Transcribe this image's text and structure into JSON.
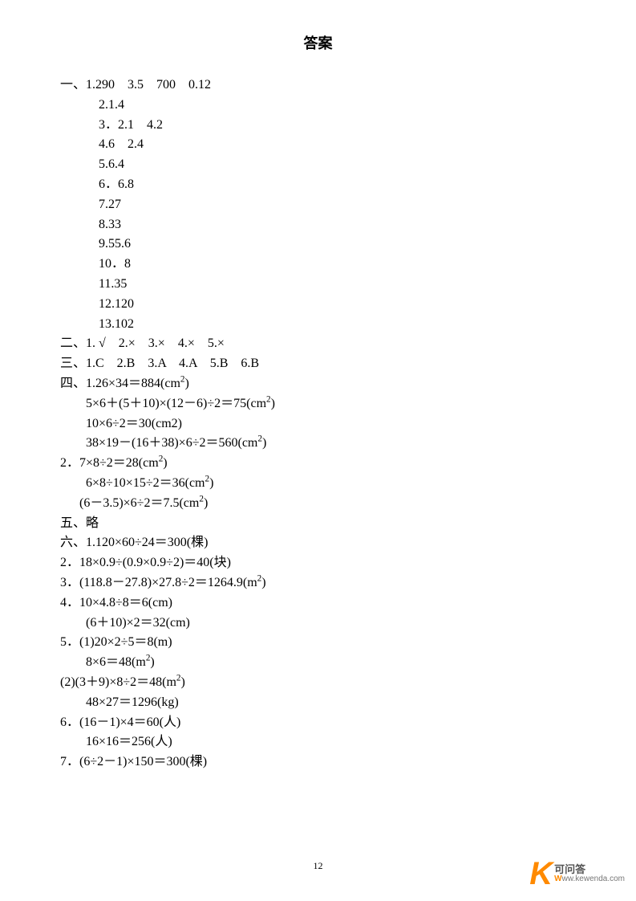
{
  "title": "答案",
  "page_number": "12",
  "lines": [
    {
      "cls": "",
      "html": "一、1.290    3.5    700    0.12"
    },
    {
      "cls": "indent1",
      "html": "2.1.4"
    },
    {
      "cls": "indent1",
      "html": "3．2.1    4.2"
    },
    {
      "cls": "indent1",
      "html": "4.6    2.4"
    },
    {
      "cls": "indent1",
      "html": "5.6.4"
    },
    {
      "cls": "indent1",
      "html": "6．6.8"
    },
    {
      "cls": "indent1",
      "html": "7.27"
    },
    {
      "cls": "indent1",
      "html": "8.33"
    },
    {
      "cls": "indent1",
      "html": "9.55.6"
    },
    {
      "cls": "indent1",
      "html": "10．8"
    },
    {
      "cls": "indent1",
      "html": "11.35"
    },
    {
      "cls": "indent1",
      "html": "12.120"
    },
    {
      "cls": "indent1",
      "html": "13.102"
    },
    {
      "cls": "",
      "html": "二、1. √    2.×    3.×    4.×    5.×"
    },
    {
      "cls": "",
      "html": "三、1.C    2.B    3.A    4.A    5.B    6.B"
    },
    {
      "cls": "",
      "html": "四、1.26×34＝884(cm<sup>2</sup>)"
    },
    {
      "cls": "indent2",
      "html": "5×6＋(5＋10)×(12－6)÷2＝75(cm<sup>2</sup>)"
    },
    {
      "cls": "indent2",
      "html": "10×6÷2＝30(cm2)"
    },
    {
      "cls": "indent2",
      "html": "38×19－(16＋38)×6÷2＝560(cm<sup>2</sup>)"
    },
    {
      "cls": "",
      "html": "2．7×8÷2＝28(cm<sup>2</sup>)"
    },
    {
      "cls": "indent2",
      "html": "6×8÷10×15÷2＝36(cm<sup>2</sup>)"
    },
    {
      "cls": "indent3",
      "html": "(6－3.5)×6÷2＝7.5(cm<sup>2</sup>)"
    },
    {
      "cls": "",
      "html": "五、略"
    },
    {
      "cls": "",
      "html": "六、1.120×60÷24＝300(棵)"
    },
    {
      "cls": "",
      "html": "2．18×0.9÷(0.9×0.9÷2)＝40(块)"
    },
    {
      "cls": "",
      "html": "3．(118.8－27.8)×27.8÷2＝1264.9(m<sup>2</sup>)"
    },
    {
      "cls": "",
      "html": "4．10×4.8÷8＝6(cm)"
    },
    {
      "cls": "indent2",
      "html": "(6＋10)×2＝32(cm)"
    },
    {
      "cls": "",
      "html": "5．(1)20×2÷5＝8(m)"
    },
    {
      "cls": "indent2",
      "html": "8×6＝48(m<sup>2</sup>)"
    },
    {
      "cls": "",
      "html": "(2)(3＋9)×8÷2＝48(m<sup>2</sup>)"
    },
    {
      "cls": "indent2",
      "html": "48×27＝1296(kg)"
    },
    {
      "cls": "",
      "html": "6．(16－1)×4＝60(人)"
    },
    {
      "cls": "indent2",
      "html": "16×16＝256(人)"
    },
    {
      "cls": "",
      "html": "7．(6÷2－1)×150＝300(棵)"
    }
  ],
  "watermark": {
    "k": "K",
    "cn": "可问答",
    "en_prefix": "W",
    "en": "ww.kewenda.com"
  }
}
